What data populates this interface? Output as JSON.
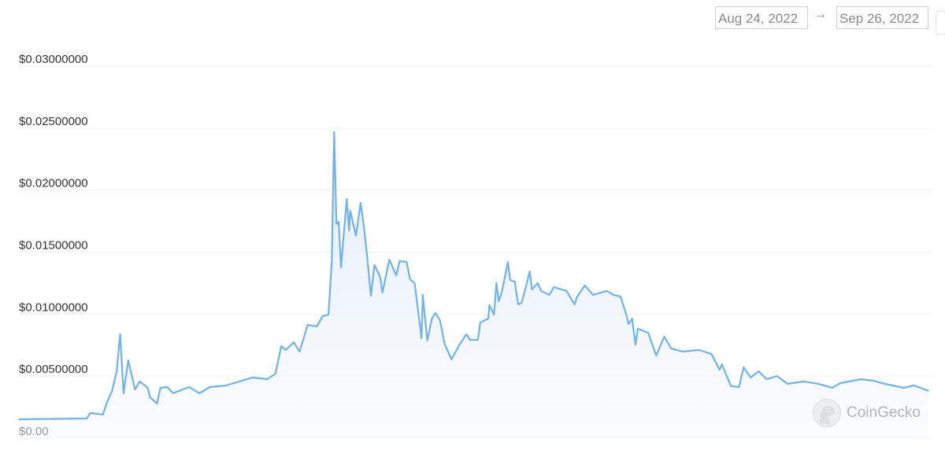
{
  "date_range": {
    "from": "Aug 24, 2022",
    "arrow": "→",
    "to": "Sep 26, 2022"
  },
  "watermark": "CoinGecko",
  "chart_data": {
    "type": "area",
    "title": "",
    "xlabel": "",
    "ylabel": "",
    "x_range": [
      "2022-08-24T00:00",
      "2022-09-26T00:00"
    ],
    "ylim": [
      0,
      0.03
    ],
    "y_ticks": [
      0,
      0.005,
      0.01,
      0.015,
      0.02,
      0.025,
      0.03
    ],
    "y_tick_labels": [
      "$0.00",
      "$0.00500000",
      "$0.01000000",
      "$0.01500000",
      "$0.02000000",
      "$0.02500000",
      "$0.03000000"
    ],
    "grid": true,
    "legend": "none",
    "line_color": "#72b2eb",
    "series": [
      {
        "points": [
          [
            "2022-08-24T00:00",
            0.00152
          ],
          [
            "2022-08-26T11:00",
            0.00159
          ],
          [
            "2022-08-26T14:00",
            0.00203
          ],
          [
            "2022-08-27T01:00",
            0.0019
          ],
          [
            "2022-08-27T05:00",
            0.00298
          ],
          [
            "2022-08-27T09:00",
            0.00381
          ],
          [
            "2022-08-27T13:00",
            0.0054
          ],
          [
            "2022-08-27T16:00",
            0.00838
          ],
          [
            "2022-08-27T19:00",
            0.00362
          ],
          [
            "2022-08-27T23:00",
            0.00628
          ],
          [
            "2022-08-28T05:00",
            0.00393
          ],
          [
            "2022-08-28T09:00",
            0.00457
          ],
          [
            "2022-08-28T16:00",
            0.00406
          ],
          [
            "2022-08-28T18:00",
            0.0033
          ],
          [
            "2022-08-29T00:00",
            0.00279
          ],
          [
            "2022-08-29T03:00",
            0.00406
          ],
          [
            "2022-08-29T09:00",
            0.00412
          ],
          [
            "2022-08-29T14:00",
            0.00362
          ],
          [
            "2022-08-30T04:00",
            0.00412
          ],
          [
            "2022-08-30T13:00",
            0.00362
          ],
          [
            "2022-08-30T22:00",
            0.00412
          ],
          [
            "2022-08-31T12:00",
            0.00425
          ],
          [
            "2022-09-01T11:00",
            0.00489
          ],
          [
            "2022-09-02T00:00",
            0.00476
          ],
          [
            "2022-09-02T07:00",
            0.0052
          ],
          [
            "2022-09-02T12:00",
            0.00742
          ],
          [
            "2022-09-02T16:00",
            0.00711
          ],
          [
            "2022-09-02T23:00",
            0.00774
          ],
          [
            "2022-09-03T04:00",
            0.00698
          ],
          [
            "2022-09-03T11:00",
            0.00914
          ],
          [
            "2022-09-03T19:00",
            0.00901
          ],
          [
            "2022-09-04T00:00",
            0.00984
          ],
          [
            "2022-09-04T05:00",
            0.00996
          ],
          [
            "2022-09-04T06:00",
            0.01123
          ],
          [
            "2022-09-04T08:00",
            0.0144
          ],
          [
            "2022-09-04T10:00",
            0.02468
          ],
          [
            "2022-09-04T12:00",
            0.01726
          ],
          [
            "2022-09-04T14:00",
            0.01745
          ],
          [
            "2022-09-04T16:00",
            0.01377
          ],
          [
            "2022-09-04T21:00",
            0.01929
          ],
          [
            "2022-09-04T23:00",
            0.01675
          ],
          [
            "2022-09-05T00:00",
            0.01834
          ],
          [
            "2022-09-05T05:00",
            0.01631
          ],
          [
            "2022-09-05T09:00",
            0.01897
          ],
          [
            "2022-09-05T12:00",
            0.01694
          ],
          [
            "2022-09-05T15:00",
            0.0144
          ],
          [
            "2022-09-05T18:00",
            0.01148
          ],
          [
            "2022-09-05T21:00",
            0.01396
          ],
          [
            "2022-09-06T02:00",
            0.01301
          ],
          [
            "2022-09-06T04:00",
            0.01174
          ],
          [
            "2022-09-06T10:00",
            0.0144
          ],
          [
            "2022-09-06T16:00",
            0.01313
          ],
          [
            "2022-09-06T19:00",
            0.01428
          ],
          [
            "2022-09-07T01:00",
            0.01421
          ],
          [
            "2022-09-07T04:00",
            0.01282
          ],
          [
            "2022-09-07T08:00",
            0.0125
          ],
          [
            "2022-09-07T14:00",
            0.00806
          ],
          [
            "2022-09-07T15:00",
            0.01155
          ],
          [
            "2022-09-07T19:00",
            0.00787
          ],
          [
            "2022-09-07T23:00",
            0.00964
          ],
          [
            "2022-09-08T02:00",
            0.01009
          ],
          [
            "2022-09-08T06:00",
            0.00952
          ],
          [
            "2022-09-08T10:00",
            0.00761
          ],
          [
            "2022-09-08T16:00",
            0.00635
          ],
          [
            "2022-09-08T23:00",
            0.00755
          ],
          [
            "2022-09-09T05:00",
            0.00838
          ],
          [
            "2022-09-09T08:00",
            0.00793
          ],
          [
            "2022-09-09T15:00",
            0.00793
          ],
          [
            "2022-09-09T17:00",
            0.00933
          ],
          [
            "2022-09-10T00:00",
            0.00964
          ],
          [
            "2022-09-10T01:00",
            0.01072
          ],
          [
            "2022-09-10T05:00",
            0.00996
          ],
          [
            "2022-09-10T07:00",
            0.0125
          ],
          [
            "2022-09-10T09:00",
            0.01104
          ],
          [
            "2022-09-10T12:00",
            0.01187
          ],
          [
            "2022-09-10T17:00",
            0.01421
          ],
          [
            "2022-09-10T19:00",
            0.01275
          ],
          [
            "2022-09-10T23:00",
            0.01263
          ],
          [
            "2022-09-11T02:00",
            0.01079
          ],
          [
            "2022-09-11T05:00",
            0.01091
          ],
          [
            "2022-09-11T09:00",
            0.01231
          ],
          [
            "2022-09-11T12:00",
            0.01345
          ],
          [
            "2022-09-11T14:00",
            0.01199
          ],
          [
            "2022-09-11T19:00",
            0.0125
          ],
          [
            "2022-09-11T22:00",
            0.01187
          ],
          [
            "2022-09-12T05:00",
            0.01155
          ],
          [
            "2022-09-12T09:00",
            0.01218
          ],
          [
            "2022-09-12T20:00",
            0.01187
          ],
          [
            "2022-09-13T03:00",
            0.01079
          ],
          [
            "2022-09-13T05:00",
            0.01136
          ],
          [
            "2022-09-13T12:00",
            0.01231
          ],
          [
            "2022-09-13T19:00",
            0.01155
          ],
          [
            "2022-09-14T07:00",
            0.01187
          ],
          [
            "2022-09-14T13:00",
            0.01155
          ],
          [
            "2022-09-14T19:00",
            0.01142
          ],
          [
            "2022-09-15T00:00",
            0.00996
          ],
          [
            "2022-09-15T02:00",
            0.0092
          ],
          [
            "2022-09-15T05:00",
            0.00964
          ],
          [
            "2022-09-15T08:00",
            0.00755
          ],
          [
            "2022-09-15T10:00",
            0.00882
          ],
          [
            "2022-09-15T19:00",
            0.0085
          ],
          [
            "2022-09-16T02:00",
            0.00666
          ],
          [
            "2022-09-16T09:00",
            0.00819
          ],
          [
            "2022-09-16T15:00",
            0.00723
          ],
          [
            "2022-09-17T01:00",
            0.00698
          ],
          [
            "2022-09-17T15:00",
            0.00711
          ],
          [
            "2022-09-18T02:00",
            0.00679
          ],
          [
            "2022-09-18T09:00",
            0.00552
          ],
          [
            "2022-09-18T11:00",
            0.00596
          ],
          [
            "2022-09-18T19:00",
            0.00419
          ],
          [
            "2022-09-19T02:00",
            0.00412
          ],
          [
            "2022-09-19T06:00",
            0.00571
          ],
          [
            "2022-09-19T12:00",
            0.00489
          ],
          [
            "2022-09-19T19:00",
            0.00539
          ],
          [
            "2022-09-20T02:00",
            0.00476
          ],
          [
            "2022-09-20T11:00",
            0.00501
          ],
          [
            "2022-09-20T20:00",
            0.00438
          ],
          [
            "2022-09-21T10:00",
            0.00457
          ],
          [
            "2022-09-21T23:00",
            0.00438
          ],
          [
            "2022-09-22T11:00",
            0.00406
          ],
          [
            "2022-09-22T18:00",
            0.00444
          ],
          [
            "2022-09-23T12:00",
            0.00476
          ],
          [
            "2022-09-23T23:00",
            0.00463
          ],
          [
            "2022-09-24T06:00",
            0.00444
          ],
          [
            "2022-09-25T01:00",
            0.00406
          ],
          [
            "2022-09-25T10:00",
            0.00425
          ],
          [
            "2022-09-25T23:00",
            0.00381
          ]
        ]
      }
    ]
  }
}
